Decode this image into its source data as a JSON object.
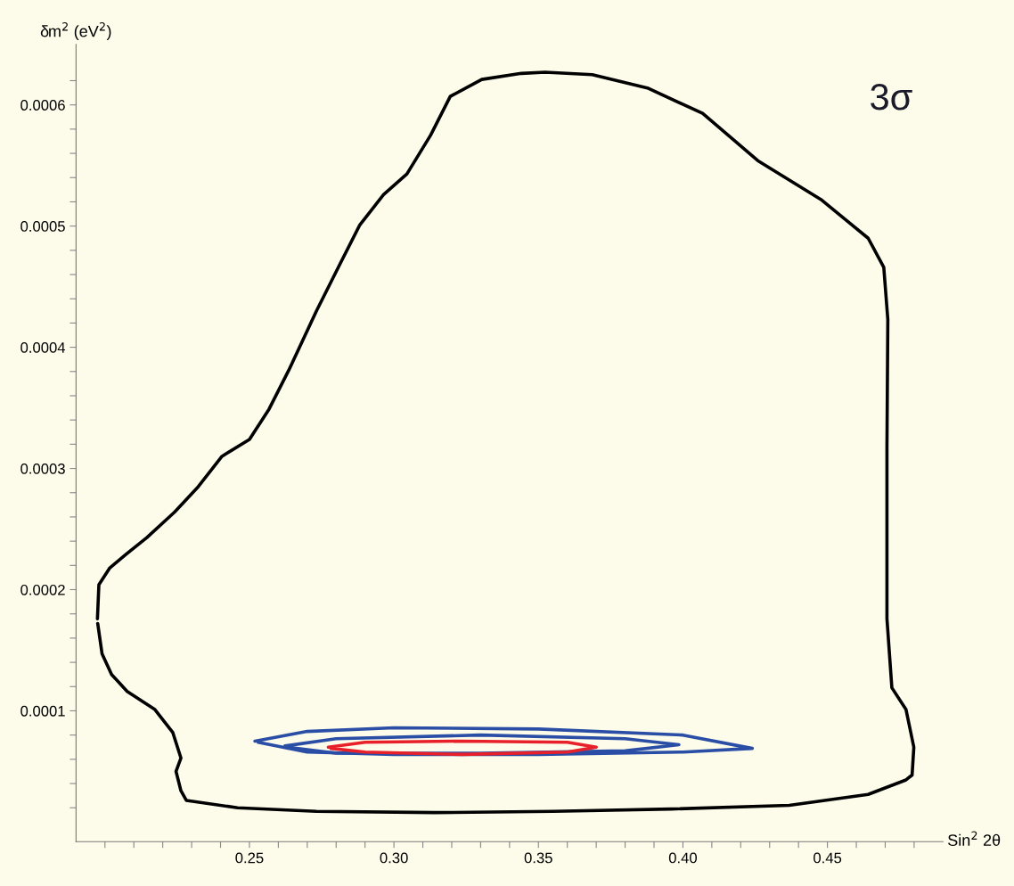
{
  "chart_data": {
    "type": "line",
    "xlabel": "Sin$^{2}$ 2θ",
    "ylabel": "δm$^{2}$ (eV$^{2}$)",
    "annotations": [
      "3σ"
    ],
    "marker": "none",
    "line_style": "solid",
    "grid": false,
    "xlim": [
      0.19,
      0.49
    ],
    "ylim": [
      -8e-06,
      0.00065
    ],
    "xticks": [
      {
        "value": 0.2,
        "label": null
      },
      {
        "value": 0.21,
        "label": null
      },
      {
        "value": 0.22,
        "label": null
      },
      {
        "value": 0.23,
        "label": null
      },
      {
        "value": 0.24,
        "label": null
      },
      {
        "value": 0.25,
        "label": "0.25"
      },
      {
        "value": 0.26,
        "label": null
      },
      {
        "value": 0.27,
        "label": null
      },
      {
        "value": 0.28,
        "label": null
      },
      {
        "value": 0.29,
        "label": null
      },
      {
        "value": 0.3,
        "label": "0.30"
      },
      {
        "value": 0.31,
        "label": null
      },
      {
        "value": 0.32,
        "label": null
      },
      {
        "value": 0.33,
        "label": null
      },
      {
        "value": 0.34,
        "label": null
      },
      {
        "value": 0.35,
        "label": "0.35"
      },
      {
        "value": 0.36,
        "label": null
      },
      {
        "value": 0.37,
        "label": null
      },
      {
        "value": 0.38,
        "label": null
      },
      {
        "value": 0.39,
        "label": null
      },
      {
        "value": 0.4,
        "label": "0.40"
      },
      {
        "value": 0.41,
        "label": null
      },
      {
        "value": 0.42,
        "label": null
      },
      {
        "value": 0.43,
        "label": null
      },
      {
        "value": 0.44,
        "label": null
      },
      {
        "value": 0.45,
        "label": "0.45"
      },
      {
        "value": 0.46,
        "label": null
      },
      {
        "value": 0.47,
        "label": null
      },
      {
        "value": 0.48,
        "label": null
      }
    ],
    "yticks": [
      {
        "value": 2e-05,
        "label": null
      },
      {
        "value": 4e-05,
        "label": null
      },
      {
        "value": 6e-05,
        "label": null
      },
      {
        "value": 8e-05,
        "label": null
      },
      0.0001,
      {
        "value": 0.00012,
        "label": null
      },
      {
        "value": 0.00014,
        "label": null
      },
      {
        "value": 0.00016,
        "label": null
      },
      {
        "value": 0.00018,
        "label": null
      },
      0.0002,
      {
        "value": 0.00022,
        "label": null
      },
      {
        "value": 0.00024,
        "label": null
      },
      {
        "value": 0.00026,
        "label": null
      },
      {
        "value": 0.00028,
        "label": null
      },
      0.0003,
      {
        "value": 0.00032,
        "label": null
      },
      {
        "value": 0.00034,
        "label": null
      },
      {
        "value": 0.00036,
        "label": null
      },
      {
        "value": 0.00038,
        "label": null
      },
      0.0004,
      {
        "value": 0.00042,
        "label": null
      },
      {
        "value": 0.00044,
        "label": null
      },
      {
        "value": 0.00046,
        "label": null
      },
      {
        "value": 0.00048,
        "label": null
      },
      0.0005,
      {
        "value": 0.00052,
        "label": null
      },
      {
        "value": 0.00054,
        "label": null
      },
      {
        "value": 0.00056,
        "label": null
      },
      {
        "value": 0.00058,
        "label": null
      },
      0.0006,
      {
        "value": 0.00062,
        "label": null
      }
    ],
    "series": [
      {
        "color": "#000000",
        "x": [
          0.1974,
          0.1979,
          0.2017,
          0.2072,
          0.2145,
          0.2241,
          0.2323,
          0.2405,
          0.25,
          0.2568,
          0.2636,
          0.2732,
          0.2814,
          0.2882,
          0.2964,
          0.3045,
          0.3127,
          0.3195,
          0.3304,
          0.3441,
          0.3523,
          0.3686,
          0.3877,
          0.4068,
          0.4259,
          0.4477,
          0.4641,
          0.4695,
          0.4709,
          0.4706,
          0.4706,
          0.4723,
          0.4772,
          0.4799,
          0.4793,
          0.4772,
          0.4641,
          0.4368,
          0.3959,
          0.355,
          0.3141,
          0.2732,
          0.2459,
          0.2282,
          0.2263,
          0.2246,
          0.2263,
          0.2235,
          0.2173,
          0.2077,
          0.2023,
          0.199,
          0.1975
        ],
        "values": [
          0.000176,
          0.000204,
          0.000218,
          0.000229,
          0.000243,
          0.000264,
          0.000285,
          0.00031,
          0.000324,
          0.000349,
          0.000381,
          0.00043,
          0.000469,
          0.000501,
          0.000526,
          0.000543,
          0.000575,
          0.000607,
          0.000621,
          0.000626,
          0.000627,
          0.000625,
          0.000614,
          0.000593,
          0.000554,
          0.000522,
          0.00049,
          0.000466,
          0.000423,
          0.000317,
          0.000176,
          0.000119,
          0.000101,
          7e-05,
          4.7e-05,
          4.3e-05,
          3.1e-05,
          2.2e-05,
          1.9e-05,
          1.7e-05,
          1.6e-05,
          1.7e-05,
          2e-05,
          2.6e-05,
          3.4e-05,
          5e-05,
          6.1e-05,
          8.2e-05,
          0.000101,
          0.000116,
          0.00013,
          0.000147,
          0.000172
        ]
      },
      {
        "color": "#2a4ea6",
        "x": [
          0.2519,
          0.27,
          0.3,
          0.35,
          0.4,
          0.424,
          0.4,
          0.35,
          0.3,
          0.27,
          0.253
        ],
        "values": [
          7.5e-05,
          8.3e-05,
          8.6e-05,
          8.5e-05,
          8e-05,
          6.9e-05,
          6.6e-05,
          6.4e-05,
          6.4e-05,
          6.6e-05,
          7.4e-05
        ]
      },
      {
        "color": "#2a4ea6",
        "x": [
          0.2623,
          0.28,
          0.33,
          0.38,
          0.3986,
          0.38,
          0.33,
          0.28,
          0.2632
        ],
        "values": [
          7.1e-05,
          7.7e-05,
          8e-05,
          7.7e-05,
          7.2e-05,
          6.7e-05,
          6.5e-05,
          6.5e-05,
          7e-05
        ]
      },
      {
        "color": "#e8202a",
        "x": [
          0.2773,
          0.29,
          0.3235,
          0.36,
          0.37,
          0.36,
          0.3235,
          0.29,
          0.2782
        ],
        "values": [
          7e-05,
          7.4e-05,
          7.5e-05,
          7.4e-05,
          7e-05,
          6.6e-05,
          6.4e-05,
          6.6e-05,
          6.9e-05
        ]
      }
    ]
  }
}
